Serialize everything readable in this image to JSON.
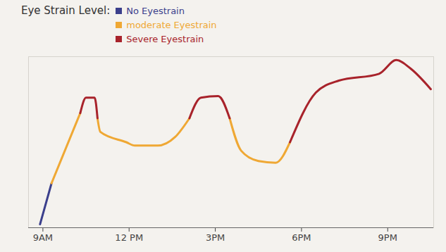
{
  "chart_data": {
    "type": "line",
    "title": "Eye Strain Level:",
    "x": [
      8.9,
      9.3,
      10.3,
      10.5,
      10.8,
      10.9,
      11.0,
      11.9,
      12.2,
      13.0,
      13.6,
      14.1,
      14.5,
      15.1,
      15.5,
      15.9,
      16.5,
      17.1,
      17.6,
      18.5,
      19.3,
      20.7,
      21.3,
      21.8,
      22.5
    ],
    "series": [
      {
        "name": "No Eyestrain",
        "color": "#3b3f8c",
        "values": [
          0.2,
          2.6,
          null,
          null,
          null,
          null,
          null,
          null,
          null,
          null,
          null,
          null,
          null,
          null,
          null,
          null,
          null,
          null,
          null,
          null,
          null,
          null,
          null,
          null,
          null
        ]
      },
      {
        "name": "moderate Eyestrain",
        "color": "#efa834",
        "values": [
          null,
          2.6,
          6.7,
          null,
          null,
          6.4,
          5.6,
          5.0,
          4.8,
          4.8,
          5.3,
          6.4,
          null,
          null,
          6.4,
          4.5,
          3.9,
          3.8,
          5.0,
          null,
          null,
          null,
          null,
          null,
          null
        ]
      },
      {
        "name": "Severe Eyestrain",
        "color": "#a8232b",
        "values": [
          null,
          null,
          6.7,
          7.6,
          7.6,
          6.4,
          null,
          null,
          null,
          null,
          null,
          6.4,
          7.6,
          7.7,
          6.4,
          null,
          null,
          null,
          5.0,
          7.9,
          8.6,
          9.0,
          9.8,
          9.3,
          8.1
        ]
      }
    ],
    "xlim": [
      8.5,
      22.6
    ],
    "xticks": [
      {
        "value": 9,
        "label": "9AM"
      },
      {
        "value": 12,
        "label": "12 PM"
      },
      {
        "value": 15,
        "label": "3PM"
      },
      {
        "value": 18,
        "label": "6PM"
      },
      {
        "value": 21,
        "label": "9PM"
      }
    ],
    "ylim": [
      0,
      10
    ],
    "tick_labels": "x",
    "legend": "top-left",
    "grid": false
  }
}
